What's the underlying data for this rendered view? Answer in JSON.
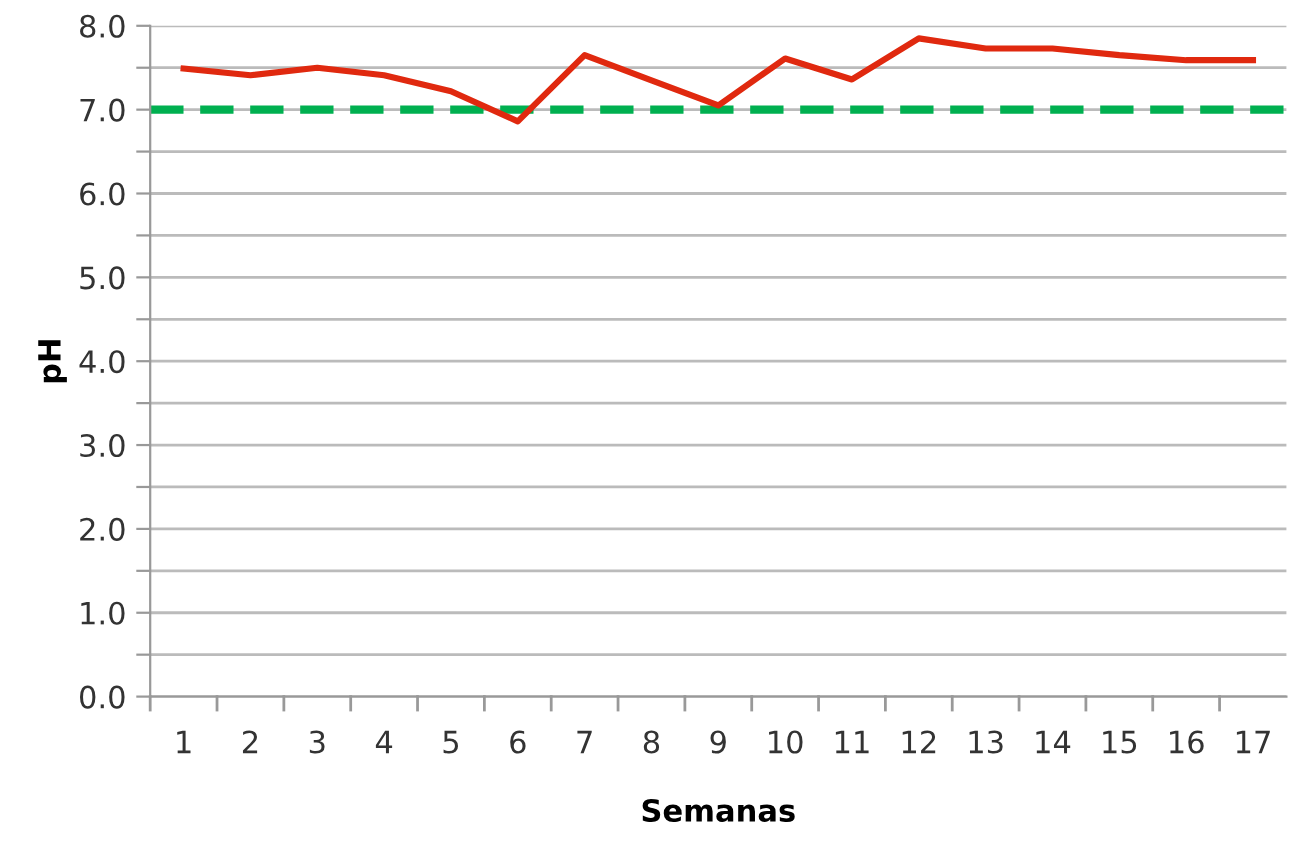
{
  "chart_data": {
    "type": "line",
    "xlabel": "Semanas",
    "ylabel": "pH",
    "categories": [
      "1",
      "2",
      "3",
      "4",
      "5",
      "6",
      "7",
      "8",
      "9",
      "10",
      "11",
      "12",
      "13",
      "14",
      "15",
      "16",
      "17"
    ],
    "series": [
      {
        "color": "#e0290f",
        "values": [
          7.49,
          7.41,
          7.5,
          7.41,
          7.22,
          6.86,
          7.65,
          7.35,
          7.05,
          7.61,
          7.36,
          7.85,
          7.73,
          7.73,
          7.65,
          7.59,
          7.59
        ]
      }
    ],
    "ref_lines": [
      {
        "axis": "y",
        "value": 7.0,
        "color": "#00b050",
        "line_style": "dashed"
      }
    ],
    "ylim": [
      0,
      8
    ],
    "yticks": [
      {
        "value": 0,
        "label": "0.0"
      },
      {
        "value": 0.5,
        "label": null
      },
      {
        "value": 1,
        "label": "1.0"
      },
      {
        "value": 1.5,
        "label": null
      },
      {
        "value": 2,
        "label": "2.0"
      },
      {
        "value": 2.5,
        "label": null
      },
      {
        "value": 3,
        "label": "3.0"
      },
      {
        "value": 3.5,
        "label": null
      },
      {
        "value": 4,
        "label": "4.0"
      },
      {
        "value": 4.5,
        "label": null
      },
      {
        "value": 5,
        "label": "5.0"
      },
      {
        "value": 5.5,
        "label": null
      },
      {
        "value": 6,
        "label": "6.0"
      },
      {
        "value": 6.5,
        "label": null
      },
      {
        "value": 7,
        "label": "7.0"
      },
      {
        "value": 7.5,
        "label": null
      },
      {
        "value": 8,
        "label": "8.0"
      }
    ],
    "grid": "y",
    "legend": false,
    "marker": "none",
    "line_style": "solid"
  }
}
